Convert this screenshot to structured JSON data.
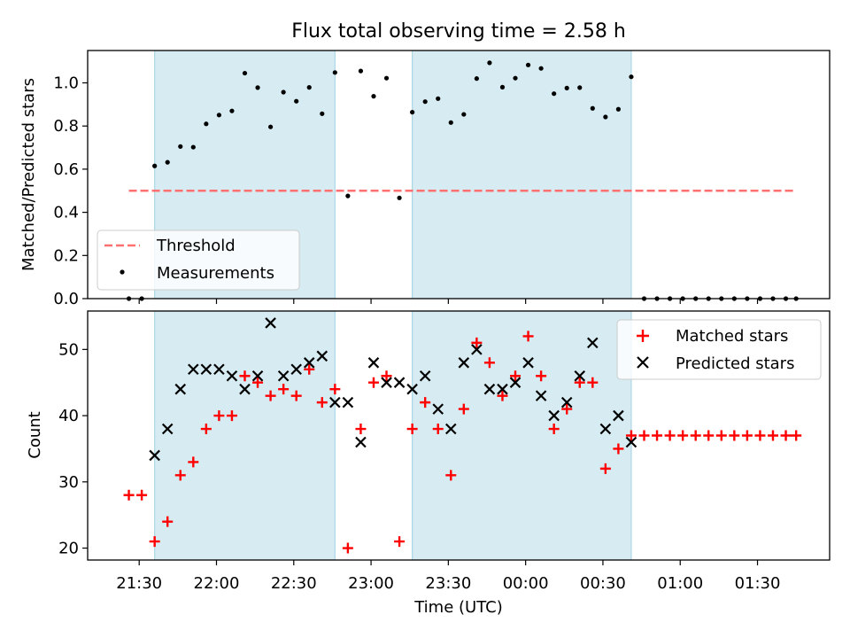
{
  "chart_data": [
    {
      "type": "scatter",
      "title": "Flux total observing time = 2.58 h",
      "xlabel": "",
      "ylabel": "Matched/Predicted stars",
      "ylim": [
        0,
        1.15
      ],
      "yticks": [
        "0.0",
        "0.2",
        "0.4",
        "0.6",
        "0.8",
        "1.0"
      ],
      "grid": false,
      "legend_position": "lower-left",
      "threshold": {
        "name": "Threshold",
        "value": 0.5,
        "x_start": "21:26",
        "x_end": "01:45",
        "color": "#ff7070"
      },
      "series": [
        {
          "name": "Measurements",
          "color": "#000000",
          "x": [
            "21:26",
            "21:31",
            "21:36",
            "21:41",
            "21:46",
            "21:51",
            "21:56",
            "22:01",
            "22:06",
            "22:11",
            "22:16",
            "22:21",
            "22:26",
            "22:31",
            "22:36",
            "22:41",
            "22:46",
            "22:51",
            "22:56",
            "23:01",
            "23:06",
            "23:11",
            "23:16",
            "23:21",
            "23:26",
            "23:31",
            "23:36",
            "23:41",
            "23:46",
            "23:51",
            "23:56",
            "00:01",
            "00:06",
            "00:11",
            "00:16",
            "00:21",
            "00:26",
            "00:31",
            "00:36",
            "00:41",
            "00:46",
            "00:51",
            "00:56",
            "01:01",
            "01:06",
            "01:11",
            "01:16",
            "01:21",
            "01:26",
            "01:31",
            "01:36",
            "01:41",
            "01:45"
          ],
          "y": [
            0.0,
            0.0,
            0.615,
            0.632,
            0.705,
            0.702,
            0.81,
            0.851,
            0.87,
            1.045,
            0.978,
            0.796,
            0.957,
            0.915,
            0.979,
            0.857,
            1.048,
            0.476,
            1.055,
            0.938,
            1.022,
            0.467,
            0.864,
            0.913,
            0.927,
            0.816,
            0.854,
            1.02,
            1.093,
            0.98,
            1.022,
            1.083,
            1.067,
            0.95,
            0.976,
            0.978,
            0.882,
            0.842,
            0.878,
            1.028,
            0.0,
            0.0,
            0.0,
            0.0,
            0.0,
            0.0,
            0.0,
            0.0,
            0.0,
            0.0,
            0.0,
            0.0,
            0.0
          ]
        }
      ]
    },
    {
      "type": "scatter",
      "title": "",
      "xlabel": "Time (UTC)",
      "ylabel": "Count",
      "ylim": [
        18.2,
        55.8
      ],
      "yticks": [
        "20",
        "30",
        "40",
        "50"
      ],
      "xlim": [
        "21:10",
        "01:58"
      ],
      "xticks": [
        "21:30",
        "22:00",
        "22:30",
        "23:00",
        "23:30",
        "00:00",
        "00:30",
        "01:00",
        "01:30"
      ],
      "grid": false,
      "legend_position": "upper-right",
      "series": [
        {
          "name": "Matched stars",
          "marker": "+",
          "color": "#ff0000",
          "x": [
            "21:26",
            "21:31",
            "21:36",
            "21:41",
            "21:46",
            "21:51",
            "21:56",
            "22:01",
            "22:06",
            "22:11",
            "22:16",
            "22:21",
            "22:26",
            "22:31",
            "22:36",
            "22:41",
            "22:46",
            "22:51",
            "22:56",
            "23:01",
            "23:06",
            "23:11",
            "23:16",
            "23:21",
            "23:26",
            "23:31",
            "23:36",
            "23:41",
            "23:46",
            "23:51",
            "23:56",
            "00:01",
            "00:06",
            "00:11",
            "00:16",
            "00:21",
            "00:26",
            "00:31",
            "00:36",
            "00:41",
            "00:46",
            "00:51",
            "00:56",
            "01:01",
            "01:06",
            "01:11",
            "01:16",
            "01:21",
            "01:26",
            "01:31",
            "01:36",
            "01:41",
            "01:45"
          ],
          "y": [
            28,
            28,
            21,
            24,
            31,
            33,
            38,
            40,
            40,
            46,
            45,
            43,
            44,
            43,
            47,
            42,
            44,
            20,
            38,
            45,
            46,
            21,
            38,
            42,
            38,
            31,
            41,
            51,
            48,
            43,
            46,
            52,
            46,
            38,
            41,
            45,
            45,
            32,
            35,
            37,
            37,
            37,
            37,
            37,
            37,
            37,
            37,
            37,
            37,
            37,
            37,
            37,
            37
          ]
        },
        {
          "name": "Predicted stars",
          "marker": "x",
          "color": "#000000",
          "x": [
            "21:36",
            "21:41",
            "21:46",
            "21:51",
            "21:56",
            "22:01",
            "22:06",
            "22:11",
            "22:16",
            "22:21",
            "22:26",
            "22:31",
            "22:36",
            "22:41",
            "22:46",
            "22:51",
            "22:56",
            "23:01",
            "23:06",
            "23:11",
            "23:16",
            "23:21",
            "23:26",
            "23:31",
            "23:36",
            "23:41",
            "23:46",
            "23:51",
            "23:56",
            "00:01",
            "00:06",
            "00:11",
            "00:16",
            "00:21",
            "00:26",
            "00:31",
            "00:36",
            "00:41"
          ],
          "y": [
            34,
            38,
            44,
            47,
            47,
            47,
            46,
            44,
            46,
            54,
            46,
            47,
            48,
            49,
            42,
            42,
            36,
            48,
            45,
            45,
            44,
            46,
            41,
            38,
            48,
            50,
            44,
            44,
            45,
            48,
            43,
            40,
            42,
            46,
            51,
            38,
            40,
            36
          ]
        }
      ]
    }
  ],
  "shaded_intervals": [
    {
      "start": "21:36",
      "end": "22:46"
    },
    {
      "start": "23:16",
      "end": "00:41"
    }
  ],
  "colors": {
    "shade": "#add8e6",
    "shade_opacity": 0.5
  }
}
